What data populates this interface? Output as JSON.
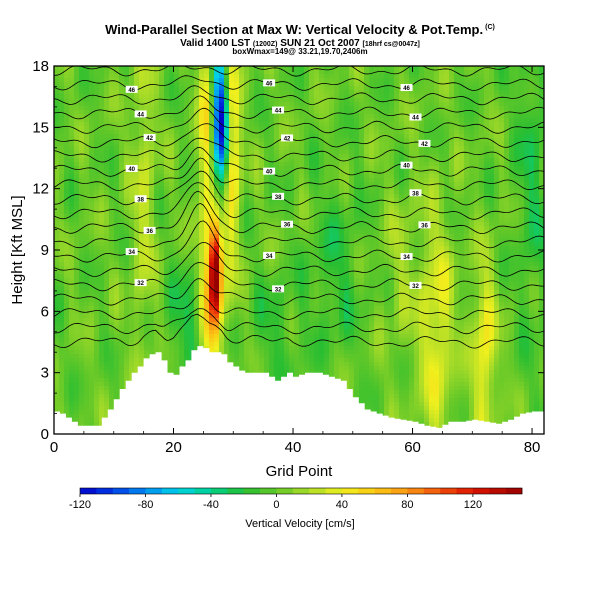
{
  "header": {
    "title": "Wind-Parallel Section at Max W: Vertical Velocity & Pot.Temp.",
    "title_mark": "(C)",
    "subtitle_main": "Valid 1400 LST",
    "subtitle_time": "(1200Z)",
    "subtitle_date": "SUN 21 Oct 2007",
    "subtitle_run": "[18hrf cs@0047z]",
    "info_line": "boxWmax=149@ 33.21,19.70,2406m"
  },
  "chart_data": {
    "type": "heatmap",
    "xlabel": "Grid Point",
    "ylabel": "Height [Kft MSL]",
    "xlim": [
      0,
      82
    ],
    "ylim": [
      0,
      18
    ],
    "x_ticks": [
      0,
      20,
      40,
      60,
      80
    ],
    "y_ticks": [
      0,
      3,
      6,
      9,
      12,
      15,
      18
    ],
    "colorbar": {
      "label": "Vertical Velocity [cm/s]",
      "ticks": [
        -120,
        -80,
        -40,
        0,
        40,
        80,
        120
      ],
      "range": [
        -120,
        150
      ]
    },
    "max_updraft": {
      "value": 149,
      "x": 27,
      "height": 7.9
    },
    "downdraft": {
      "x": 28,
      "height": 15.5,
      "value": -70
    },
    "terrain": [
      {
        "x": 0,
        "h": 1.1
      },
      {
        "x": 1,
        "h": 1.0
      },
      {
        "x": 2,
        "h": 0.8
      },
      {
        "x": 3,
        "h": 0.6
      },
      {
        "x": 4,
        "h": 0.4
      },
      {
        "x": 7,
        "h": 0.4
      },
      {
        "x": 8,
        "h": 0.8
      },
      {
        "x": 9,
        "h": 1.2
      },
      {
        "x": 10,
        "h": 1.7
      },
      {
        "x": 11,
        "h": 2.2
      },
      {
        "x": 12,
        "h": 2.6
      },
      {
        "x": 13,
        "h": 3.0
      },
      {
        "x": 14,
        "h": 3.3
      },
      {
        "x": 15,
        "h": 3.7
      },
      {
        "x": 16,
        "h": 3.9
      },
      {
        "x": 17,
        "h": 4.0
      },
      {
        "x": 18,
        "h": 3.6
      },
      {
        "x": 19,
        "h": 3.0
      },
      {
        "x": 20,
        "h": 2.9
      },
      {
        "x": 21,
        "h": 3.3
      },
      {
        "x": 22,
        "h": 3.6
      },
      {
        "x": 23,
        "h": 4.1
      },
      {
        "x": 24,
        "h": 4.3
      },
      {
        "x": 25,
        "h": 4.2
      },
      {
        "x": 26,
        "h": 4.0
      },
      {
        "x": 27,
        "h": 4.0
      },
      {
        "x": 28,
        "h": 3.9
      },
      {
        "x": 29,
        "h": 3.5
      },
      {
        "x": 30,
        "h": 3.3
      },
      {
        "x": 31,
        "h": 3.1
      },
      {
        "x": 32,
        "h": 3.0
      },
      {
        "x": 35,
        "h": 3.0
      },
      {
        "x": 36,
        "h": 2.8
      },
      {
        "x": 37,
        "h": 2.6
      },
      {
        "x": 38,
        "h": 2.8
      },
      {
        "x": 39,
        "h": 3.0
      },
      {
        "x": 40,
        "h": 2.8
      },
      {
        "x": 41,
        "h": 2.9
      },
      {
        "x": 42,
        "h": 3.0
      },
      {
        "x": 44,
        "h": 3.0
      },
      {
        "x": 45,
        "h": 2.9
      },
      {
        "x": 46,
        "h": 2.8
      },
      {
        "x": 47,
        "h": 2.7
      },
      {
        "x": 48,
        "h": 2.6
      },
      {
        "x": 49,
        "h": 2.2
      },
      {
        "x": 50,
        "h": 1.8
      },
      {
        "x": 51,
        "h": 1.5
      },
      {
        "x": 52,
        "h": 1.2
      },
      {
        "x": 54,
        "h": 1.0
      },
      {
        "x": 55,
        "h": 0.9
      },
      {
        "x": 56,
        "h": 0.8
      },
      {
        "x": 58,
        "h": 0.7
      },
      {
        "x": 60,
        "h": 0.6
      },
      {
        "x": 62,
        "h": 0.4
      },
      {
        "x": 64,
        "h": 0.3
      },
      {
        "x": 66,
        "h": 0.6
      },
      {
        "x": 68,
        "h": 0.6
      },
      {
        "x": 70,
        "h": 0.7
      },
      {
        "x": 72,
        "h": 0.6
      },
      {
        "x": 74,
        "h": 0.5
      },
      {
        "x": 76,
        "h": 0.7
      },
      {
        "x": 78,
        "h": 1.0
      },
      {
        "x": 80,
        "h": 1.1
      },
      {
        "x": 82,
        "h": 1.1
      }
    ],
    "isentropes": [
      {
        "base": 4.5,
        "label": ""
      },
      {
        "base": 5.2,
        "label": ""
      },
      {
        "base": 5.9,
        "label": ""
      },
      {
        "base": 6.6,
        "label": ""
      },
      {
        "base": 7.3,
        "label": "32"
      },
      {
        "base": 8.0,
        "label": ""
      },
      {
        "base": 8.7,
        "label": "34"
      },
      {
        "base": 9.4,
        "label": ""
      },
      {
        "base": 10.1,
        "label": "36"
      },
      {
        "base": 10.8,
        "label": ""
      },
      {
        "base": 11.5,
        "label": "38"
      },
      {
        "base": 12.2,
        "label": ""
      },
      {
        "base": 12.9,
        "label": "40"
      },
      {
        "base": 13.6,
        "label": ""
      },
      {
        "base": 14.3,
        "label": "42"
      },
      {
        "base": 15.0,
        "label": ""
      },
      {
        "base": 15.7,
        "label": "44"
      },
      {
        "base": 16.4,
        "label": ""
      },
      {
        "base": 17.1,
        "label": "46"
      },
      {
        "base": 17.8,
        "label": ""
      }
    ]
  }
}
